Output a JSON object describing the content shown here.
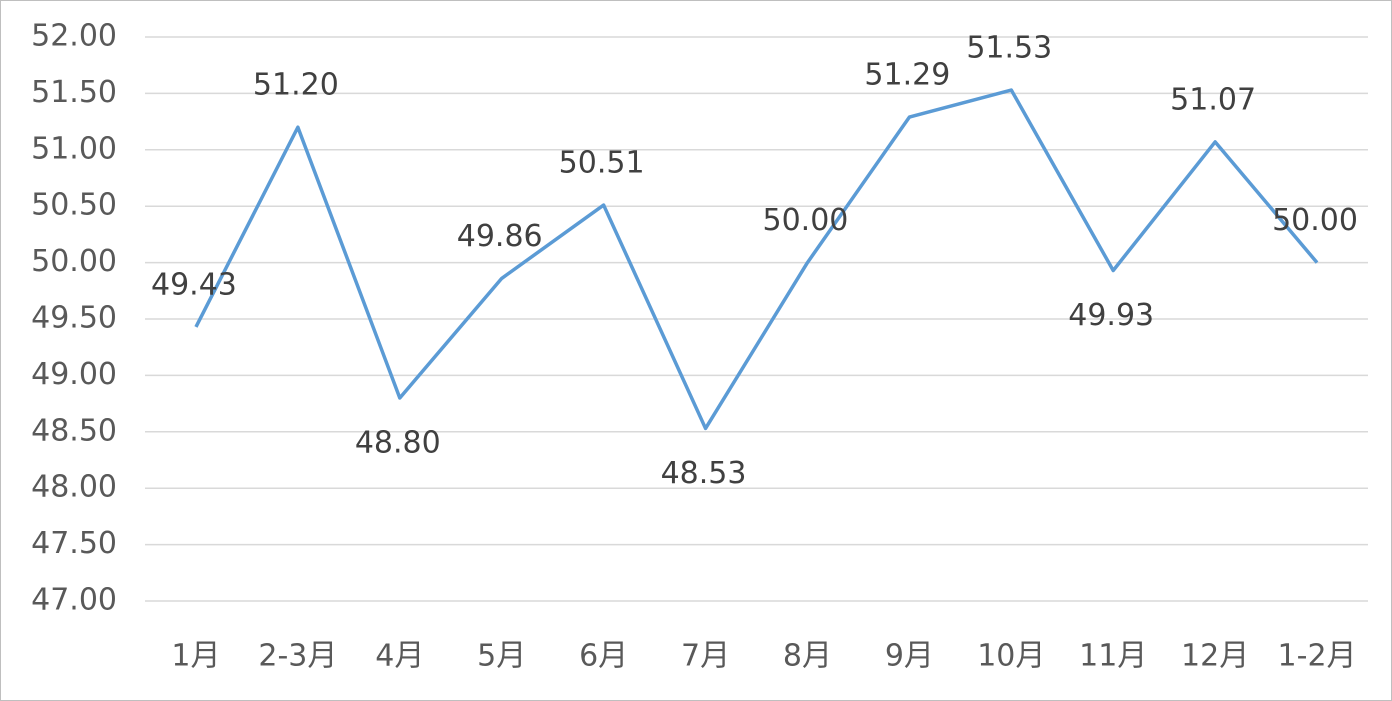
{
  "chart_data": {
    "type": "line",
    "categories": [
      "1月",
      "2-3月",
      "4月",
      "5月",
      "6月",
      "7月",
      "8月",
      "9月",
      "10月",
      "11月",
      "12月",
      "1-2月"
    ],
    "series": [
      {
        "color": "#5b9bd5",
        "values": [
          49.43,
          51.2,
          48.8,
          49.86,
          50.51,
          48.53,
          50,
          51.29,
          51.53,
          49.93,
          51.07,
          50
        ],
        "value_labels": [
          "49.43",
          "51.20",
          "48.80",
          "49.86",
          "50.51",
          "48.53",
          "50.00",
          "51.29",
          "51.53",
          "49.93",
          "51.07",
          "50.00"
        ]
      }
    ],
    "ylim": [
      47,
      52
    ],
    "yticks": [
      {
        "value": 47,
        "label": "47.00"
      },
      {
        "value": 47.5,
        "label": "47.50"
      },
      {
        "value": 48,
        "label": "48.00"
      },
      {
        "value": 48.5,
        "label": "48.50"
      },
      {
        "value": 49,
        "label": "49.00"
      },
      {
        "value": 49.5,
        "label": "49.50"
      },
      {
        "value": 50,
        "label": "50.00"
      },
      {
        "value": 50.5,
        "label": "50.50"
      },
      {
        "value": 51,
        "label": "51.00"
      },
      {
        "value": 51.5,
        "label": "51.50"
      },
      {
        "value": 52,
        "label": "52.00"
      }
    ],
    "grid": true
  }
}
